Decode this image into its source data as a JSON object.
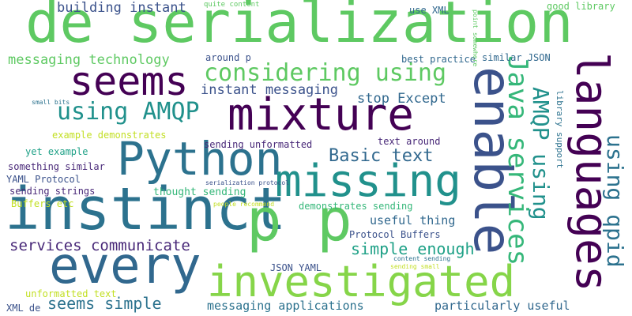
{
  "words": [
    {
      "text": "de serialization",
      "color": "#5ec962"
    },
    {
      "text": "seems",
      "color": "#440154"
    },
    {
      "text": "mixture",
      "color": "#440154"
    },
    {
      "text": "considering using",
      "color": "#5ec962"
    },
    {
      "text": "using AMQP",
      "color": "#21918c"
    },
    {
      "text": "Python",
      "color": "#2c728e"
    },
    {
      "text": "missing",
      "color": "#21918c"
    },
    {
      "text": "instinct",
      "color": "#2c728e"
    },
    {
      "text": "p p",
      "color": "#5ec962"
    },
    {
      "text": "every",
      "color": "#31688e"
    },
    {
      "text": "investigated",
      "color": "#86d549"
    },
    {
      "text": "enable",
      "color": "#3b528b"
    },
    {
      "text": "languages",
      "color": "#440154"
    },
    {
      "text": "Java services",
      "color": "#35b779"
    },
    {
      "text": "AMQP using",
      "color": "#21918c"
    },
    {
      "text": "using qpid",
      "color": "#2c728e"
    },
    {
      "text": "building instant",
      "color": "#3b528b"
    },
    {
      "text": "messaging technology",
      "color": "#5ec962"
    },
    {
      "text": "instant messaging",
      "color": "#3b528b"
    },
    {
      "text": "stop Except",
      "color": "#31688e"
    },
    {
      "text": "Basic text",
      "color": "#31688e"
    },
    {
      "text": "services communicate",
      "color": "#482878"
    },
    {
      "text": "simple enough",
      "color": "#1fa187"
    },
    {
      "text": "seems simple",
      "color": "#2c728e"
    },
    {
      "text": "quite content",
      "color": "#5ec962"
    },
    {
      "text": "use XML",
      "color": "#31688e"
    },
    {
      "text": "good library",
      "color": "#5ec962"
    },
    {
      "text": "similar JSON",
      "color": "#31688e"
    },
    {
      "text": "best practice",
      "color": "#31688e"
    },
    {
      "text": "around p",
      "color": "#3b528b"
    },
    {
      "text": "point somewhere",
      "color": "#5ec962"
    },
    {
      "text": "library support",
      "color": "#2c728e"
    },
    {
      "text": "small bits",
      "color": "#2c728e"
    },
    {
      "text": "example demonstrates",
      "color": "#c2df23"
    },
    {
      "text": "sending unformatted",
      "color": "#482878"
    },
    {
      "text": "text around",
      "color": "#482878"
    },
    {
      "text": "yet example",
      "color": "#1fa187"
    },
    {
      "text": "something similar",
      "color": "#482878"
    },
    {
      "text": "YAML Protocol",
      "color": "#3b528b"
    },
    {
      "text": "sending strings",
      "color": "#482878"
    },
    {
      "text": "thought sending",
      "color": "#35b779"
    },
    {
      "text": "serialization protocol",
      "color": "#3b528b"
    },
    {
      "text": "Buffers etc",
      "color": "#c2df23"
    },
    {
      "text": "people recommend",
      "color": "#c2df23"
    },
    {
      "text": "demonstrates sending",
      "color": "#35b779"
    },
    {
      "text": "useful thing",
      "color": "#31688e"
    },
    {
      "text": "Protocol Buffers",
      "color": "#3b528b"
    },
    {
      "text": "JSON YAML",
      "color": "#3b528b"
    },
    {
      "text": "content sending",
      "color": "#2c728e"
    },
    {
      "text": "sending small",
      "color": "#c2df23"
    },
    {
      "text": "unformatted text",
      "color": "#c2df23"
    },
    {
      "text": "XML de",
      "color": "#3b528b"
    },
    {
      "text": "messaging applications",
      "color": "#2c728e"
    },
    {
      "text": "particularly useful",
      "color": "#31688e"
    }
  ]
}
